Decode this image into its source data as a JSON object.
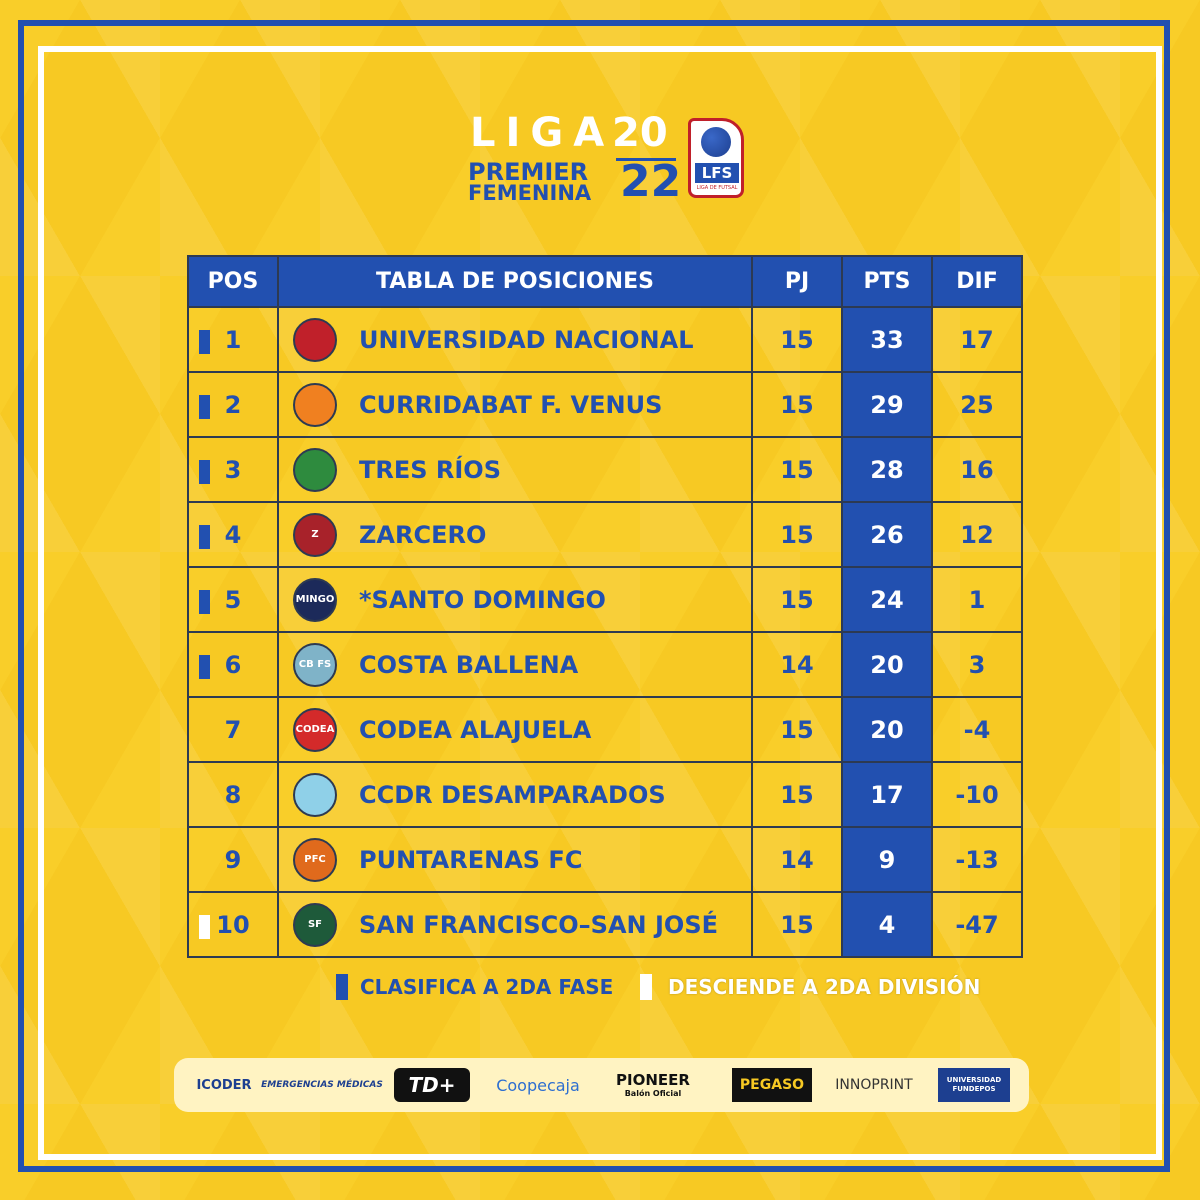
{
  "logo": {
    "liga": "LIGA",
    "year_top": "20",
    "premier": "PREMIER",
    "femenina": "FEMENINA",
    "year_bottom": "22",
    "badge": "LFS",
    "badge_sub": "LIGA DE FUTSAL"
  },
  "table": {
    "headers": {
      "pos": "POS",
      "title": "TABLA DE POSICIONES",
      "pj": "PJ",
      "pts": "PTS",
      "dif": "DIF"
    },
    "rows": [
      {
        "pos": "1",
        "team": "UNIVERSIDAD NACIONAL",
        "pj": "15",
        "pts": "33",
        "dif": "17",
        "marker": "blue",
        "crest_color": "#c0202a",
        "crest_text": ""
      },
      {
        "pos": "2",
        "team": "CURRIDABAT F. VENUS",
        "pj": "15",
        "pts": "29",
        "dif": "25",
        "marker": "blue",
        "crest_color": "#f08020",
        "crest_text": ""
      },
      {
        "pos": "3",
        "team": "TRES RÍOS",
        "pj": "15",
        "pts": "28",
        "dif": "16",
        "marker": "blue",
        "crest_color": "#2e8b3e",
        "crest_text": ""
      },
      {
        "pos": "4",
        "team": "ZARCERO",
        "pj": "15",
        "pts": "26",
        "dif": "12",
        "marker": "blue",
        "crest_color": "#a8222a",
        "crest_text": "Z"
      },
      {
        "pos": "5",
        "team": "*SANTO DOMINGO",
        "pj": "15",
        "pts": "24",
        "dif": "1",
        "marker": "blue",
        "crest_color": "#1c2a5a",
        "crest_text": "MINGO"
      },
      {
        "pos": "6",
        "team": "COSTA BALLENA",
        "pj": "14",
        "pts": "20",
        "dif": "3",
        "marker": "blue",
        "crest_color": "#7fb3c8",
        "crest_text": "CB FS"
      },
      {
        "pos": "7",
        "team": "CODEA ALAJUELA",
        "pj": "15",
        "pts": "20",
        "dif": "-4",
        "marker": "none",
        "crest_color": "#d42a2a",
        "crest_text": "CODEA"
      },
      {
        "pos": "8",
        "team": "CCDR DESAMPARADOS",
        "pj": "15",
        "pts": "17",
        "dif": "-10",
        "marker": "none",
        "crest_color": "#8fd0e8",
        "crest_text": ""
      },
      {
        "pos": "9",
        "team": "PUNTARENAS  FC",
        "pj": "14",
        "pts": "9",
        "dif": "-13",
        "marker": "none",
        "crest_color": "#e06a1c",
        "crest_text": "PFC"
      },
      {
        "pos": "10",
        "team": "SAN FRANCISCO–SAN JOSÉ",
        "pj": "15",
        "pts": "4",
        "dif": "-47",
        "marker": "white",
        "crest_color": "#1e5a3a",
        "crest_text": "SF"
      }
    ]
  },
  "legend": {
    "qualify": "CLASIFICA A 2DA FASE",
    "relegate": "DESCIENDE A 2DA DIVISIÓN",
    "qualify_color": "#2250b0",
    "relegate_color": "#ffffff"
  },
  "sponsors": [
    {
      "name": "ICODER",
      "color": "#1d3f90"
    },
    {
      "name": "EMERGENCIAS MÉDICAS",
      "color": "#1d3f90"
    },
    {
      "name": "TD+",
      "color": "#111111"
    },
    {
      "name": "Coopecaja",
      "color": "#2e6fd0"
    },
    {
      "name": "PIONEER",
      "color": "#111111"
    },
    {
      "name": "Balón Oficial",
      "color": "#111111"
    },
    {
      "name": "PEGASO",
      "color": "#111111"
    },
    {
      "name": "INNOPRINT",
      "color": "#333333"
    },
    {
      "name": "UNIVERSIDAD FUNDEPOS",
      "color": "#1d3f90"
    }
  ]
}
